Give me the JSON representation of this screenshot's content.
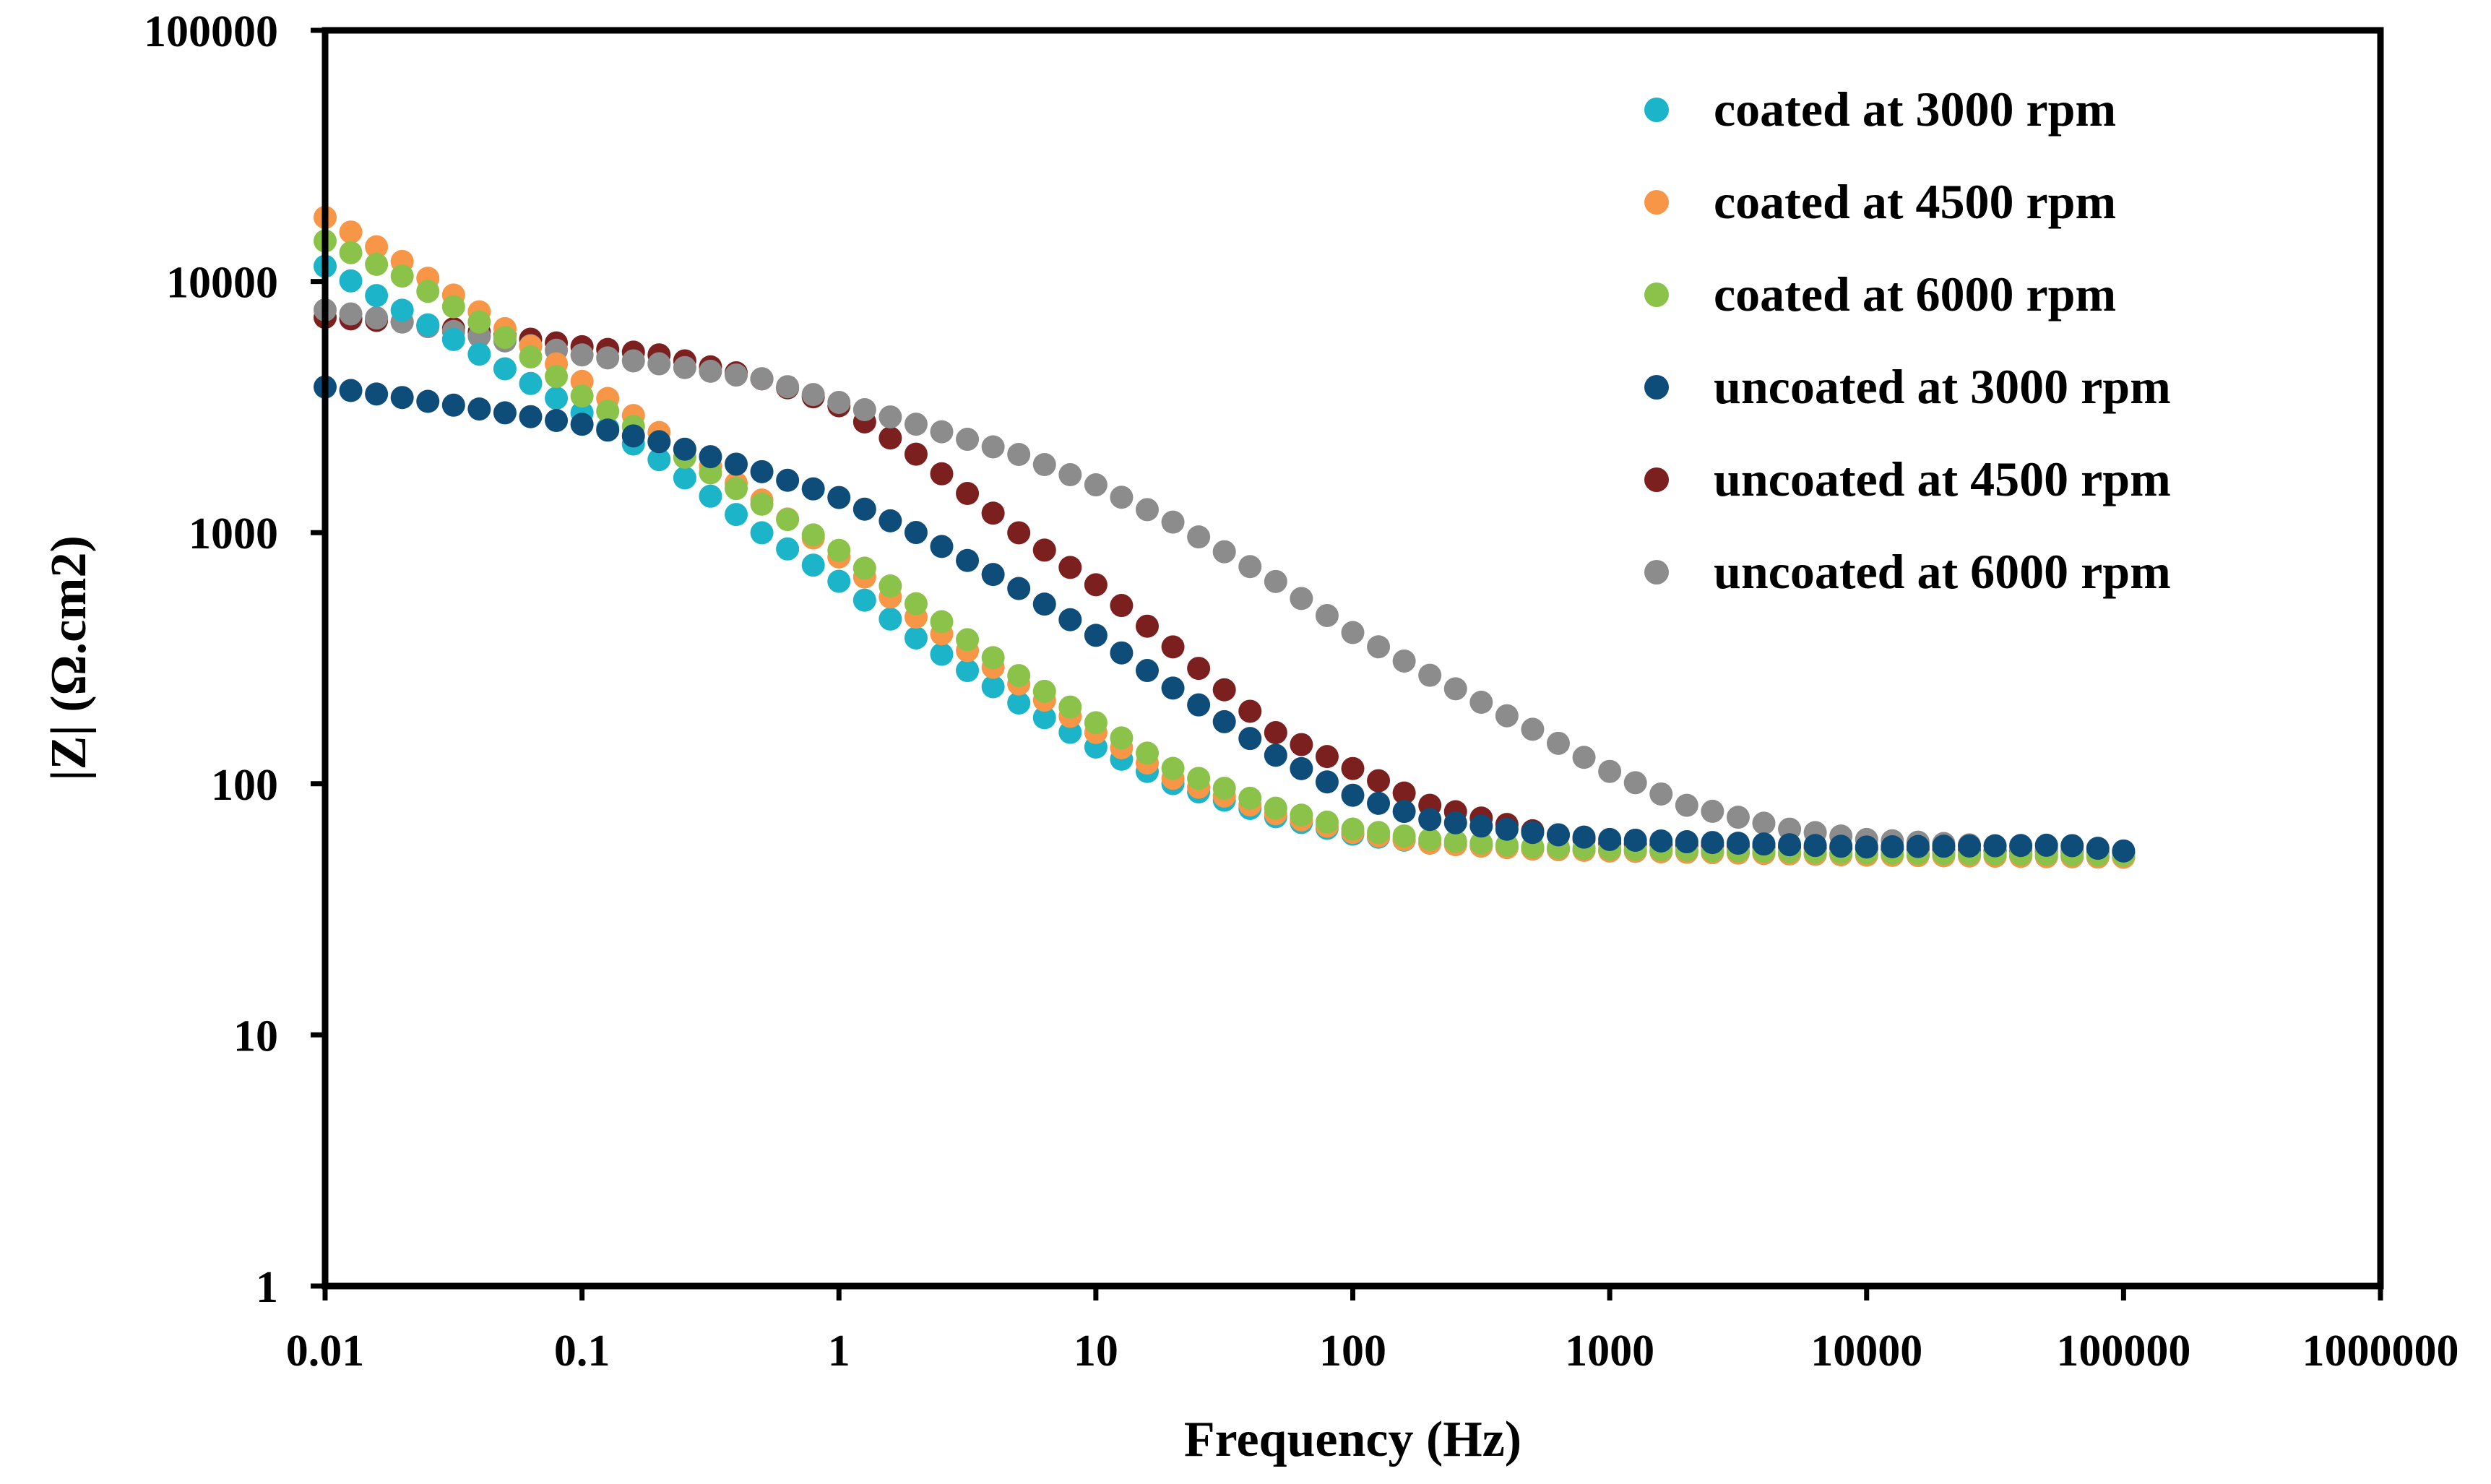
{
  "chart_data": {
    "type": "scatter",
    "title": "",
    "xlabel": "Frequency (Hz)",
    "ylabel": "|Z| (Ω.cm2)",
    "xscale": "log",
    "yscale": "log",
    "xlim": [
      0.01,
      1000000
    ],
    "ylim": [
      1,
      100000
    ],
    "grid": false,
    "legend_position": "top-right",
    "x_ticks": [
      {
        "value": 0.01,
        "label": "0.01"
      },
      {
        "value": 0.1,
        "label": "0.1"
      },
      {
        "value": 1,
        "label": "1"
      },
      {
        "value": 10,
        "label": "10"
      },
      {
        "value": 100,
        "label": "100"
      },
      {
        "value": 1000,
        "label": "1000"
      },
      {
        "value": 10000,
        "label": "10000"
      },
      {
        "value": 100000,
        "label": "100000"
      },
      {
        "value": 1000000,
        "label": "1000000"
      }
    ],
    "y_ticks": [
      {
        "value": 1,
        "label": "1"
      },
      {
        "value": 10,
        "label": "10"
      },
      {
        "value": 100,
        "label": "100"
      },
      {
        "value": 1000,
        "label": "1000"
      },
      {
        "value": 10000,
        "label": "10000"
      },
      {
        "value": 100000,
        "label": "100000"
      }
    ],
    "series": [
      {
        "name": "coated at 3000 rpm",
        "color": "#1cb4c8",
        "points": [
          [
            0.01,
            11500
          ],
          [
            0.1,
            3000
          ],
          [
            0.2,
            1950
          ],
          [
            0.5,
            1000
          ],
          [
            1,
            640
          ],
          [
            2,
            380
          ],
          [
            5,
            210
          ],
          [
            10,
            140
          ],
          [
            20,
            100
          ],
          [
            50,
            74
          ],
          [
            100,
            63
          ],
          [
            200,
            58
          ],
          [
            500,
            55
          ],
          [
            1000,
            54
          ],
          [
            10000,
            52
          ],
          [
            100000,
            51
          ]
        ]
      },
      {
        "name": "coated at 4500 rpm",
        "color": "#f79646",
        "points": [
          [
            0.01,
            18000
          ],
          [
            0.02,
            12000
          ],
          [
            0.05,
            6500
          ],
          [
            0.1,
            4000
          ],
          [
            0.2,
            2500
          ],
          [
            0.5,
            1350
          ],
          [
            1,
            800
          ],
          [
            2,
            460
          ],
          [
            5,
            250
          ],
          [
            10,
            160
          ],
          [
            20,
            105
          ],
          [
            50,
            76
          ],
          [
            100,
            64
          ],
          [
            200,
            58
          ],
          [
            500,
            55
          ],
          [
            1000,
            54
          ],
          [
            10000,
            52
          ],
          [
            100000,
            51
          ]
        ]
      },
      {
        "name": "coated at 6000 rpm",
        "color": "#8bc34a",
        "points": [
          [
            0.01,
            14500
          ],
          [
            0.02,
            10500
          ],
          [
            0.05,
            6000
          ],
          [
            0.1,
            3500
          ],
          [
            0.2,
            2300
          ],
          [
            0.5,
            1300
          ],
          [
            1,
            850
          ],
          [
            2,
            520
          ],
          [
            5,
            270
          ],
          [
            10,
            175
          ],
          [
            20,
            115
          ],
          [
            50,
            80
          ],
          [
            100,
            66
          ],
          [
            200,
            60
          ],
          [
            500,
            56
          ],
          [
            1000,
            55
          ],
          [
            10000,
            53
          ],
          [
            100000,
            52
          ]
        ]
      },
      {
        "name": "uncoated at 3000 rpm",
        "color": "#0e4c7a",
        "points": [
          [
            0.01,
            3800
          ],
          [
            0.02,
            3450
          ],
          [
            0.05,
            3000
          ],
          [
            0.1,
            2700
          ],
          [
            0.2,
            2300
          ],
          [
            0.5,
            1750
          ],
          [
            1,
            1380
          ],
          [
            2,
            1000
          ],
          [
            5,
            600
          ],
          [
            10,
            390
          ],
          [
            20,
            240
          ],
          [
            50,
            130
          ],
          [
            100,
            90
          ],
          [
            200,
            72
          ],
          [
            500,
            64
          ],
          [
            1000,
            60
          ],
          [
            10000,
            56
          ],
          [
            60000,
            57
          ],
          [
            100000,
            54
          ]
        ]
      },
      {
        "name": "uncoated at 4500 rpm",
        "color": "#7b1f1f",
        "points": [
          [
            0.01,
            7200
          ],
          [
            0.02,
            6900
          ],
          [
            0.05,
            6100
          ],
          [
            0.1,
            5500
          ],
          [
            0.2,
            5100
          ],
          [
            0.5,
            4100
          ],
          [
            1,
            3200
          ],
          [
            2,
            2050
          ],
          [
            5,
            1000
          ],
          [
            10,
            620
          ],
          [
            20,
            350
          ],
          [
            50,
            160
          ],
          [
            100,
            115
          ],
          [
            200,
            82
          ],
          [
            500,
            65
          ],
          [
            1000,
            58
          ],
          [
            10000,
            55
          ],
          [
            100000,
            53
          ]
        ]
      },
      {
        "name": "uncoated at 6000 rpm",
        "color": "#8c8c8c",
        "points": [
          [
            0.01,
            7700
          ],
          [
            0.02,
            6900
          ],
          [
            0.05,
            5800
          ],
          [
            0.1,
            5100
          ],
          [
            0.2,
            4700
          ],
          [
            0.5,
            4100
          ],
          [
            1,
            3300
          ],
          [
            2,
            2700
          ],
          [
            5,
            2050
          ],
          [
            10,
            1550
          ],
          [
            20,
            1100
          ],
          [
            50,
            640
          ],
          [
            100,
            400
          ],
          [
            200,
            270
          ],
          [
            500,
            165
          ],
          [
            1000,
            112
          ],
          [
            2000,
            82
          ],
          [
            5000,
            66
          ],
          [
            10000,
            60
          ],
          [
            50000,
            55
          ],
          [
            100000,
            53
          ]
        ]
      }
    ]
  }
}
